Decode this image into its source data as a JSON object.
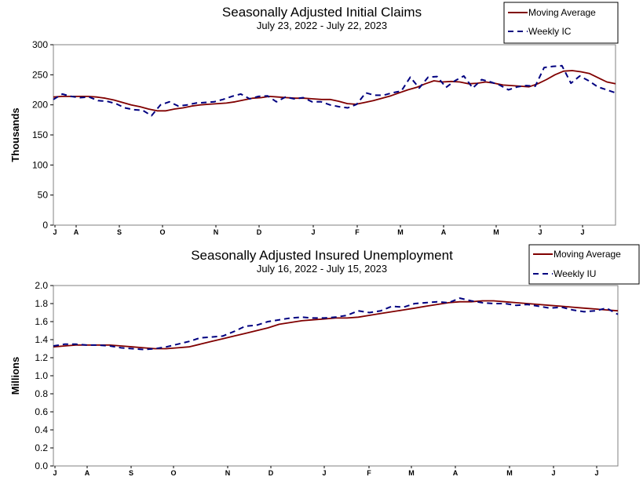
{
  "chart_data": [
    {
      "type": "line",
      "title": "Seasonally Adjusted Initial Claims",
      "subtitle": "July 23, 2022 - July 22, 2023",
      "ylabel": "Thousands",
      "ylim": [
        0,
        300
      ],
      "yticks": [
        "0",
        "50",
        "100",
        "150",
        "200",
        "250",
        "300"
      ],
      "xticks": [
        "J",
        "A",
        "S",
        "O",
        "N",
        "D",
        "J",
        "F",
        "M",
        "A",
        "M",
        "J",
        "J"
      ],
      "grid": false,
      "legend_position": "top-right",
      "series": [
        {
          "name": "Moving Average",
          "color": "#800000",
          "style": "solid",
          "values": [
            213,
            214,
            214,
            214,
            214,
            213,
            211,
            208,
            204,
            200,
            197,
            193,
            190,
            190,
            193,
            195,
            198,
            200,
            201,
            202,
            203,
            205,
            208,
            211,
            212,
            214,
            213,
            212,
            211,
            211,
            210,
            209,
            209,
            206,
            202,
            201,
            204,
            207,
            211,
            215,
            220,
            225,
            229,
            235,
            240,
            238,
            239,
            238,
            235,
            236,
            238,
            236,
            233,
            232,
            231,
            230,
            235,
            242,
            250,
            256,
            257,
            255,
            252,
            245,
            238,
            235
          ]
        },
        {
          "name": "Weekly IC",
          "color": "#000080",
          "style": "dashed",
          "values": [
            209,
            218,
            214,
            212,
            213,
            207,
            206,
            202,
            195,
            192,
            191,
            182,
            200,
            205,
            198,
            200,
            203,
            204,
            205,
            209,
            214,
            218,
            210,
            214,
            215,
            205,
            213,
            210,
            212,
            205,
            205,
            200,
            197,
            195,
            201,
            220,
            216,
            216,
            220,
            223,
            246,
            228,
            246,
            247,
            229,
            240,
            248,
            228,
            242,
            238,
            233,
            225,
            230,
            232,
            231,
            262,
            264,
            265,
            236,
            248,
            240,
            230,
            225,
            220
          ]
        }
      ]
    },
    {
      "type": "line",
      "title": "Seasonally Adjusted Insured Unemployment",
      "subtitle": "July 16, 2022 - July 15, 2023",
      "ylabel": "Millions",
      "ylim": [
        0,
        2
      ],
      "yticks": [
        "0.0",
        "0.2",
        "0.4",
        "0.6",
        "0.8",
        "1.0",
        "1.2",
        "1.4",
        "1.6",
        "1.8",
        "2.0"
      ],
      "xticks": [
        "J",
        "A",
        "S",
        "O",
        "N",
        "D",
        "J",
        "F",
        "M",
        "A",
        "M",
        "J",
        "J"
      ],
      "grid": false,
      "legend_position": "top-right",
      "series": [
        {
          "name": "Moving Average",
          "color": "#800000",
          "style": "solid",
          "values": [
            1.32,
            1.33,
            1.34,
            1.34,
            1.34,
            1.34,
            1.33,
            1.32,
            1.31,
            1.3,
            1.3,
            1.31,
            1.32,
            1.35,
            1.38,
            1.41,
            1.44,
            1.47,
            1.5,
            1.53,
            1.57,
            1.59,
            1.61,
            1.62,
            1.63,
            1.64,
            1.64,
            1.65,
            1.67,
            1.69,
            1.71,
            1.73,
            1.75,
            1.77,
            1.79,
            1.81,
            1.82,
            1.82,
            1.83,
            1.83,
            1.82,
            1.81,
            1.8,
            1.79,
            1.78,
            1.77,
            1.76,
            1.75,
            1.74,
            1.73,
            1.72
          ]
        },
        {
          "name": "Weekly IU",
          "color": "#000080",
          "style": "dashed",
          "values": [
            1.33,
            1.35,
            1.35,
            1.34,
            1.34,
            1.33,
            1.31,
            1.3,
            1.29,
            1.3,
            1.32,
            1.35,
            1.38,
            1.42,
            1.43,
            1.44,
            1.49,
            1.55,
            1.56,
            1.6,
            1.62,
            1.64,
            1.65,
            1.64,
            1.64,
            1.65,
            1.67,
            1.72,
            1.7,
            1.72,
            1.77,
            1.76,
            1.8,
            1.81,
            1.82,
            1.81,
            1.86,
            1.83,
            1.81,
            1.8,
            1.8,
            1.78,
            1.79,
            1.77,
            1.75,
            1.76,
            1.73,
            1.71,
            1.72,
            1.75,
            1.68
          ]
        }
      ]
    }
  ]
}
